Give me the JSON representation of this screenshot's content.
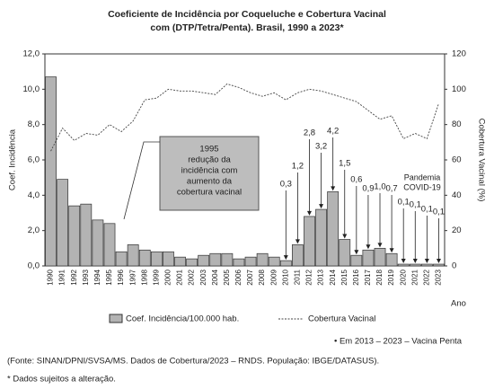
{
  "chart_data": {
    "type": "bar",
    "title": [
      "Coeficiente de Incidência por Coqueluche e Cobertura Vacinal",
      "com (DTP/Tetra/Penta). Brasil, 1990 a 2023*"
    ],
    "y_label": "Coef. Incidência",
    "y2_label": "Cobertura Vacinal (%)",
    "x_label": "Ano",
    "categories": [
      "1990",
      "1991",
      "1992",
      "1993",
      "1994",
      "1995",
      "1996",
      "1997",
      "1998",
      "1999",
      "2000",
      "2001",
      "2002",
      "2003",
      "2004",
      "2005",
      "2006",
      "2007",
      "2008",
      "2009",
      "2010",
      "2011",
      "2012",
      "2013",
      "2014",
      "2015",
      "2016",
      "2017",
      "2018",
      "2019",
      "2020",
      "2021",
      "2022",
      "2023"
    ],
    "series": [
      {
        "name": "Coef. Incidência/100.000 hab.",
        "type": "bar",
        "color": "#b3b3b3",
        "values": [
          10.7,
          4.9,
          3.4,
          3.5,
          2.6,
          2.4,
          0.8,
          1.2,
          0.9,
          0.8,
          0.8,
          0.5,
          0.4,
          0.6,
          0.7,
          0.7,
          0.4,
          0.5,
          0.7,
          0.5,
          0.3,
          1.2,
          2.8,
          3.2,
          4.2,
          1.5,
          0.6,
          0.9,
          1.0,
          0.7,
          0.1,
          0.1,
          0.1,
          0.1
        ],
        "value_labels": [
          null,
          null,
          null,
          null,
          null,
          null,
          null,
          null,
          null,
          null,
          null,
          null,
          null,
          null,
          null,
          null,
          null,
          null,
          null,
          null,
          "0,3",
          "1,2",
          "2,8",
          "3,2",
          "4,2",
          "1,5",
          "0,6",
          "0,9",
          "1,0",
          "0,7",
          "0,1",
          "0,1",
          "0,1",
          "0,1"
        ]
      },
      {
        "name": "Cobertura Vacinal",
        "type": "line",
        "axis": "y2",
        "color": "#444444",
        "values": [
          65,
          78,
          71,
          75,
          74,
          80,
          76,
          82,
          94,
          95,
          100,
          99,
          99,
          98,
          97,
          103,
          101,
          98,
          96,
          98,
          94,
          98,
          100,
          99,
          97,
          95,
          93,
          88,
          83,
          85,
          72,
          75,
          72,
          92
        ]
      }
    ],
    "ylim": [
      0,
      12
    ],
    "yticks": [
      {
        "value": 0,
        "label": "0,0"
      },
      {
        "value": 2,
        "label": "2,0"
      },
      {
        "value": 4,
        "label": "4,0"
      },
      {
        "value": 6,
        "label": "6,0"
      },
      {
        "value": 8,
        "label": "8,0"
      },
      {
        "value": 10,
        "label": "10,0"
      },
      {
        "value": 12,
        "label": "12,0"
      }
    ],
    "y2lim": [
      0,
      120
    ],
    "y2ticks": [
      0,
      20,
      40,
      60,
      80,
      100,
      120
    ],
    "annotations": {
      "box": [
        "1995",
        "redução da",
        "incidência com",
        "aumento da",
        "cobertura vacinal"
      ],
      "pandemic": [
        "Pandemia",
        "COVID-19"
      ]
    },
    "notes": [
      "• Em 2013 – 2023 – Vacina Penta",
      "(Fonte: SINAN/DPNI/SVSA/MS. Dados de Cobertura/2023 – RNDS. População: IBGE/DATASUS).",
      "* Dados sujeitos a alteração."
    ]
  }
}
